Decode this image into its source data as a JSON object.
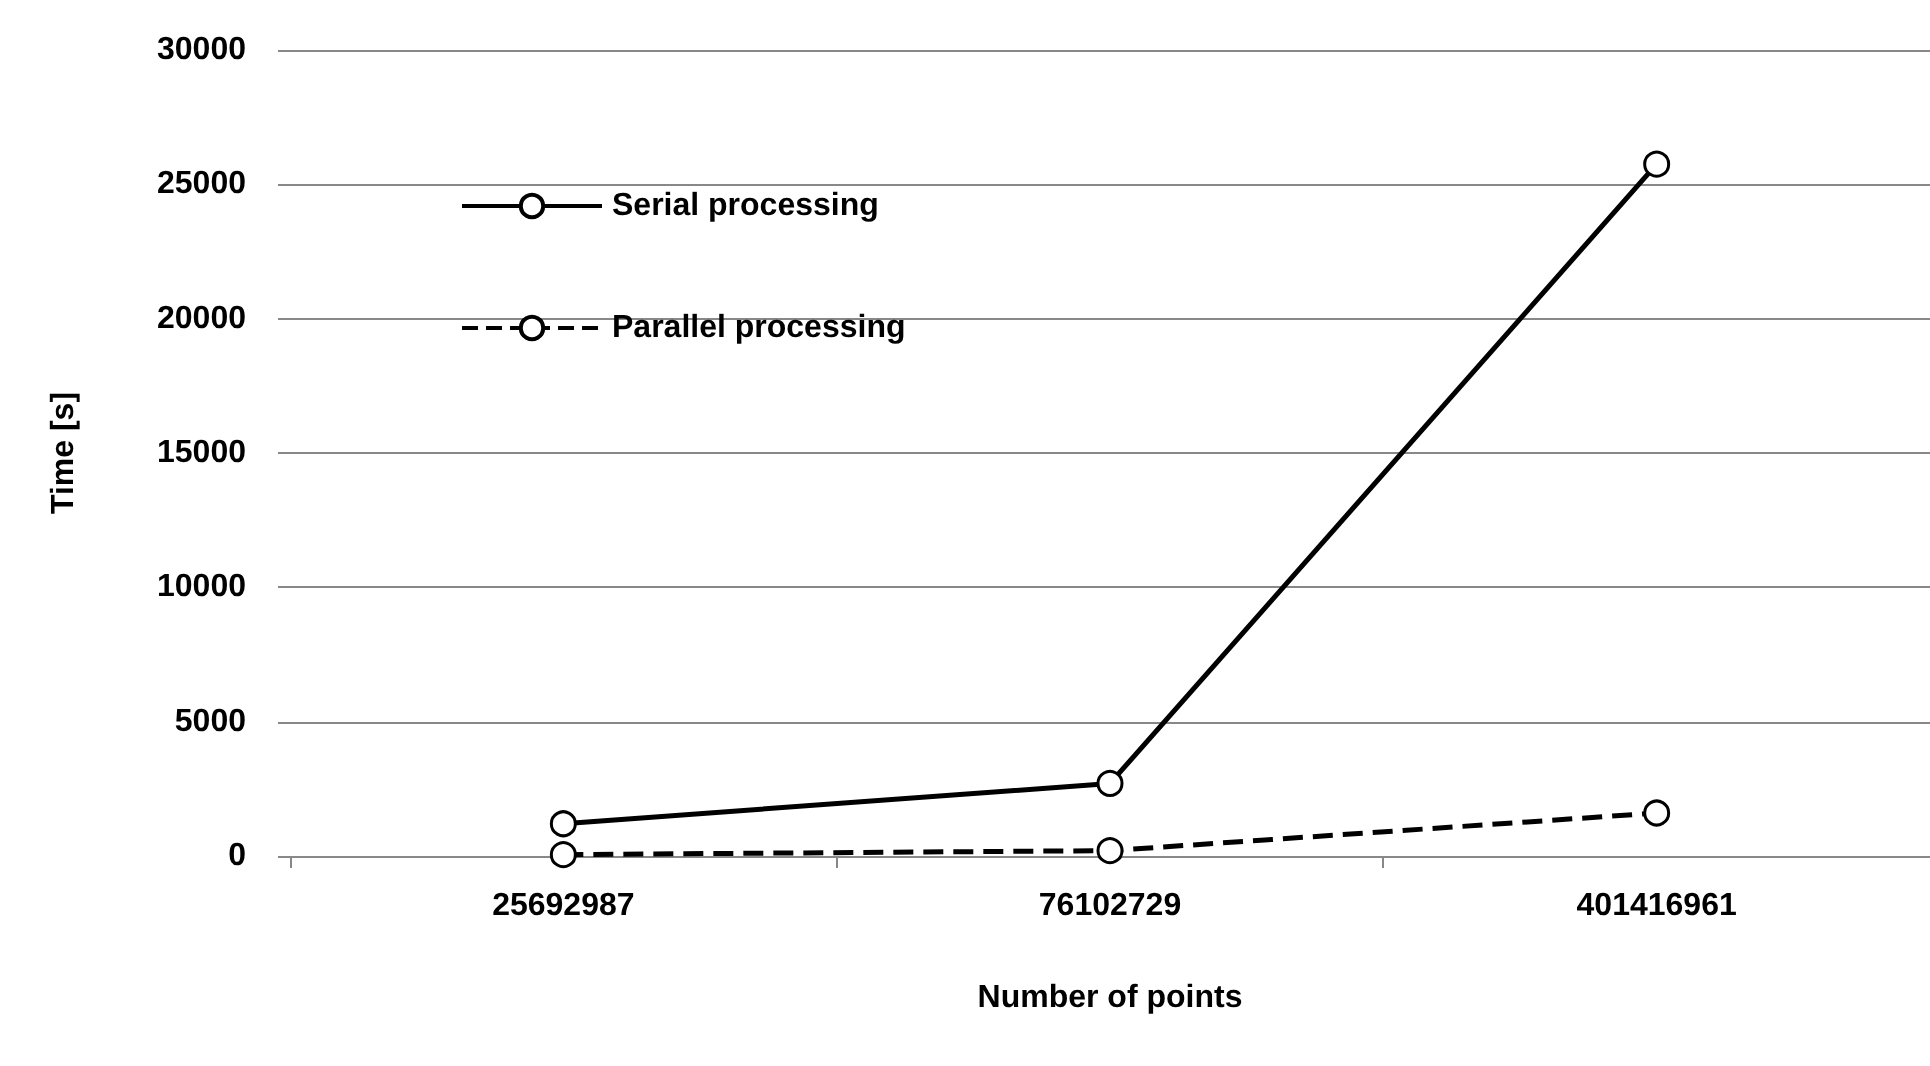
{
  "chart_data": {
    "type": "line",
    "xlabel": "Number of points",
    "ylabel": "Time [s]",
    "categories": [
      "25692987",
      "76102729",
      "401416961"
    ],
    "series": [
      {
        "name": "Serial processing",
        "color": "#000000",
        "line_style": "solid",
        "values": [
          1200,
          2700,
          25750
        ]
      },
      {
        "name": "Parallel processing",
        "color": "#000000",
        "line_style": "dashed",
        "values": [
          50,
          200,
          1600
        ]
      }
    ],
    "ylim": [
      0,
      30000
    ],
    "yticks": [
      0,
      5000,
      10000,
      15000,
      20000,
      25000,
      30000
    ],
    "grid": "y",
    "legend": "top left",
    "marker": "circle"
  }
}
